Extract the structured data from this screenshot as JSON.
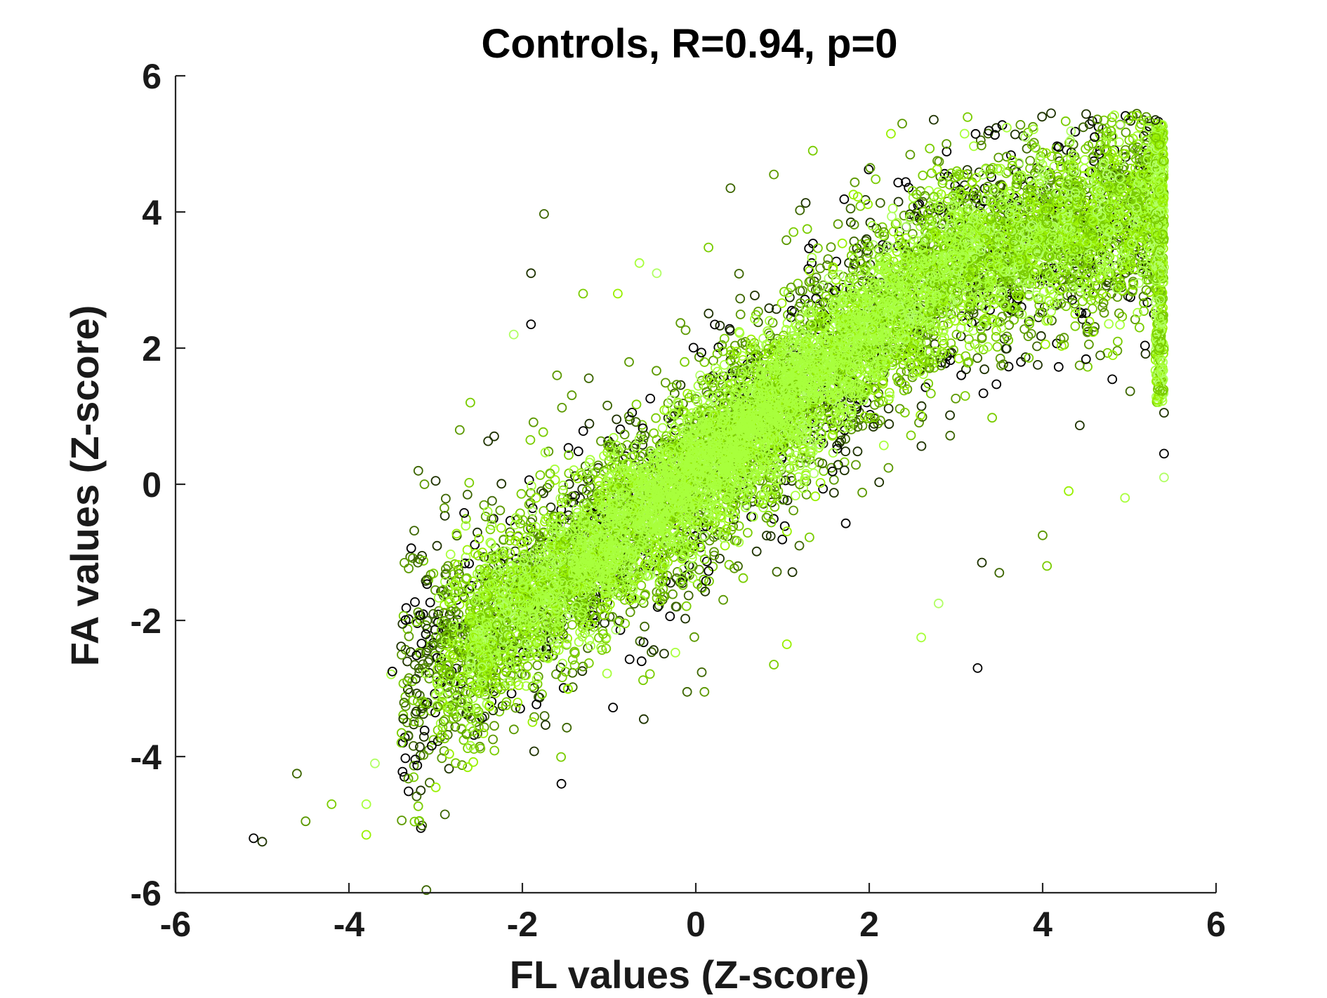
{
  "chart_data": {
    "type": "scatter",
    "title": "Controls, R=0.94, p=0",
    "xlabel": "FL values (Z-score)",
    "ylabel": "FA values (Z-score)",
    "xlim": [
      -6,
      6
    ],
    "ylim": [
      -6,
      6
    ],
    "xticks": [
      -6,
      -4,
      -2,
      0,
      2,
      4,
      6
    ],
    "yticks": [
      -6,
      -4,
      -2,
      0,
      2,
      4,
      6
    ],
    "xtick_labels": [
      "-6",
      "-4",
      "-2",
      "0",
      "2",
      "4",
      "6"
    ],
    "ytick_labels": [
      "-6",
      "-4",
      "-2",
      "0",
      "2",
      "4",
      "6"
    ],
    "grid": false,
    "box": false,
    "marker": "open-circle",
    "point_colors": [
      "#000000",
      "#1f3300",
      "#3d6600",
      "#5c9900",
      "#7acc00",
      "#99f000",
      "#a8ff3c",
      "#b2ff66"
    ],
    "distribution": {
      "approx_n_points": 60000,
      "x_range": [
        -5.1,
        5.4
      ],
      "y_range": [
        -5.3,
        5.4
      ],
      "trend": "strong positive linear, dense core along y = x, saturating near x = 5.4"
    },
    "outlier_points": [
      {
        "x": -5.1,
        "y": -5.2
      },
      {
        "x": -5.0,
        "y": -5.25
      },
      {
        "x": -4.6,
        "y": -4.25
      },
      {
        "x": -4.5,
        "y": -4.95
      },
      {
        "x": -4.2,
        "y": -4.7
      },
      {
        "x": -3.8,
        "y": -5.15
      },
      {
        "x": -3.8,
        "y": -4.7
      },
      {
        "x": -3.7,
        "y": -4.1
      },
      {
        "x": -3.5,
        "y": -2.75
      },
      {
        "x": -3.0,
        "y": 0.05
      },
      {
        "x": -3.1,
        "y": -1.4
      },
      {
        "x": -2.9,
        "y": -0.35
      },
      {
        "x": -2.6,
        "y": 1.2
      },
      {
        "x": -2.5,
        "y": -0.8
      },
      {
        "x": -2.4,
        "y": -0.4
      },
      {
        "x": -2.1,
        "y": 2.2
      },
      {
        "x": -1.9,
        "y": 2.35
      },
      {
        "x": -1.9,
        "y": 3.1
      },
      {
        "x": -1.75,
        "y": 3.97
      },
      {
        "x": -1.6,
        "y": 1.6
      },
      {
        "x": -1.3,
        "y": 2.8
      },
      {
        "x": -0.9,
        "y": 2.8
      },
      {
        "x": -0.65,
        "y": 3.25
      },
      {
        "x": -0.45,
        "y": 3.1
      },
      {
        "x": -1.55,
        "y": -4.4
      },
      {
        "x": -0.6,
        "y": -3.45
      },
      {
        "x": -0.1,
        "y": -3.05
      },
      {
        "x": 0.1,
        "y": -3.05
      },
      {
        "x": 0.9,
        "y": -2.65
      },
      {
        "x": 1.05,
        "y": -2.35
      },
      {
        "x": 2.6,
        "y": -2.25
      },
      {
        "x": 2.8,
        "y": -1.75
      },
      {
        "x": 3.25,
        "y": -2.7
      },
      {
        "x": 3.3,
        "y": -1.15
      },
      {
        "x": 3.5,
        "y": -1.3
      },
      {
        "x": 4.0,
        "y": -0.75
      },
      {
        "x": 4.05,
        "y": -1.2
      },
      {
        "x": 4.3,
        "y": -0.1
      },
      {
        "x": 4.95,
        "y": -0.2
      },
      {
        "x": 5.4,
        "y": 0.1
      },
      {
        "x": 5.4,
        "y": 0.45
      },
      {
        "x": 5.4,
        "y": 1.05
      },
      {
        "x": 0.4,
        "y": 4.35
      },
      {
        "x": 0.9,
        "y": 4.55
      },
      {
        "x": 1.35,
        "y": 4.9
      },
      {
        "x": 2.25,
        "y": 5.15
      },
      {
        "x": 3.1,
        "y": 5.15
      },
      {
        "x": 3.8,
        "y": 5.1
      },
      {
        "x": 4.6,
        "y": 5.1
      },
      {
        "x": 5.3,
        "y": 5.35
      }
    ]
  }
}
